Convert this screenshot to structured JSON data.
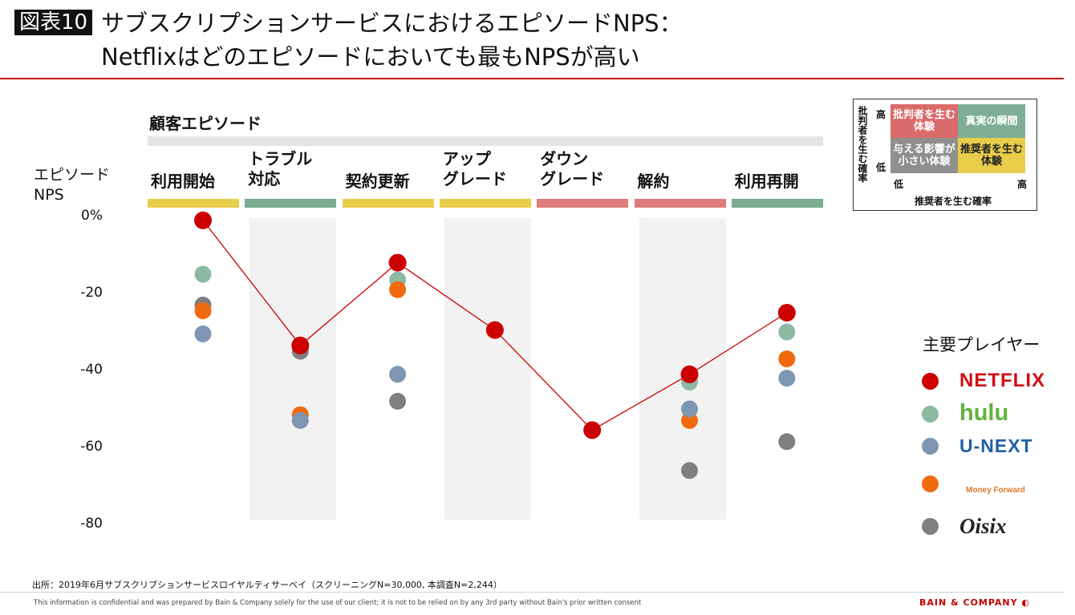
{
  "header": {
    "fig_tag": "図表10",
    "title_line1": "サブスクリプションサービスにおけるエピソードNPS：",
    "title_line2": "Netflixはどのエピソードにおいても最もNPSが高い"
  },
  "episode_header": "顧客エピソード",
  "colors": {
    "netflix": "#cc0000",
    "hulu": "#8db9a3",
    "unext": "#7f96b3",
    "moneyforward": "#f26a10",
    "oisix": "#7f7f7f",
    "bar_yellow": "#e8cd4a",
    "bar_green": "#78ab90",
    "bar_red": "#e07c7c",
    "title_rule": "#c00000"
  },
  "chart_data": {
    "type": "scatter",
    "ylabel": "エピソード\nNPS",
    "ylim": [
      -80,
      0
    ],
    "yticks": [
      "0%",
      "-20",
      "-40",
      "-60",
      "-80"
    ],
    "categories": [
      {
        "label": "利用開始",
        "kind": "yellow"
      },
      {
        "label": "トラブル\n対応",
        "kind": "green"
      },
      {
        "label": "契約更新",
        "kind": "yellow"
      },
      {
        "label": "アップ\nグレード",
        "kind": "yellow"
      },
      {
        "label": "ダウン\nグレード",
        "kind": "red"
      },
      {
        "label": "解約",
        "kind": "red"
      },
      {
        "label": "利用再開",
        "kind": "green"
      }
    ],
    "series": [
      {
        "key": "netflix",
        "values": [
          -1,
          -33.5,
          -12,
          -29.5,
          -55.5,
          -41,
          -25
        ],
        "line": true
      },
      {
        "key": "hulu",
        "values": [
          -15,
          null,
          -16.5,
          null,
          null,
          -43,
          -30
        ]
      },
      {
        "key": "oisix",
        "values": [
          -23,
          -35,
          -48,
          null,
          null,
          -66,
          -58.5
        ]
      },
      {
        "key": "moneyforward",
        "values": [
          -24.5,
          -51.5,
          -19,
          null,
          null,
          -53,
          -37
        ]
      },
      {
        "key": "unext",
        "values": [
          -30.5,
          -53,
          -41,
          null,
          null,
          -50,
          -42
        ]
      }
    ]
  },
  "matrix": {
    "y_axis": "批判者を生む確率",
    "high": "高",
    "low": "低",
    "x_axis": "推奨者を生む確率",
    "x_low": "低",
    "x_high": "高",
    "cell_tl": "批判者を生む\n体験",
    "cell_tr": "真実の瞬間",
    "cell_bl": "与える影響が\n小さい体験",
    "cell_br": "推奨者を生む\n体験",
    "color_tl": "#d96b6b",
    "color_tr": "#7fae96",
    "color_bl": "#8f8f8f",
    "color_br": "#e8cd4a"
  },
  "legend": {
    "title": "主要プレイヤー",
    "items": [
      {
        "key": "netflix",
        "logo": "NETFLIX",
        "logo_color": "#d10b14"
      },
      {
        "key": "hulu",
        "logo": "hulu",
        "logo_color": "#5fb33b"
      },
      {
        "key": "unext",
        "logo": "U-NEXT",
        "logo_color": "#1f5fa6"
      },
      {
        "key": "moneyforward",
        "logo": "Money Forward",
        "logo_color": "#e8742a"
      },
      {
        "key": "oisix",
        "logo": "Oisix",
        "logo_color": "#222222"
      }
    ]
  },
  "footnote": "出所：2019年6月サブスクリプションサービスロイヤルティサーベイ（スクリーニングN=30,000, 本調査N=2,244）",
  "disclaimer": "This information is confidential and was prepared by Bain & Company solely for the use of our client; it is not to be relied on by any 3rd party without Bain's prior written consent",
  "brand": "BAIN & COMPANY"
}
